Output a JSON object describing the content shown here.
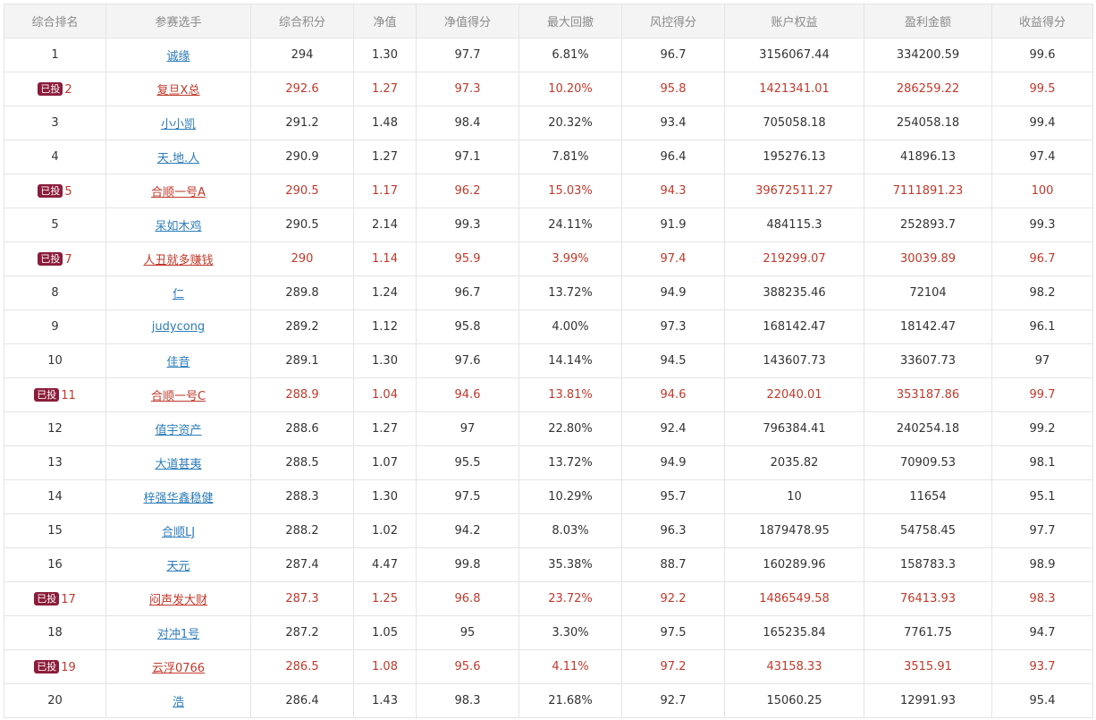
{
  "columns": [
    "综合排名",
    "参赛选手",
    "综合积分",
    "净值",
    "净值得分",
    "最大回撤",
    "风控得分",
    "账户权益",
    "盈利金额",
    "收益得分"
  ],
  "badge_label": "已投",
  "colors": {
    "invested_text": "#c0392b",
    "badge_bg": "#8b1d3a",
    "link": "#2d7cb8"
  },
  "rows": [
    {
      "rank": "1",
      "name": "诚缘",
      "score": "294",
      "nav": "1.30",
      "nav_score": "97.7",
      "drawdown": "6.81%",
      "risk_score": "96.7",
      "equity": "3156067.44",
      "profit": "334200.59",
      "return_score": "99.6",
      "invested": false
    },
    {
      "rank": "2",
      "name": "复旦X总",
      "score": "292.6",
      "nav": "1.27",
      "nav_score": "97.3",
      "drawdown": "10.20%",
      "risk_score": "95.8",
      "equity": "1421341.01",
      "profit": "286259.22",
      "return_score": "99.5",
      "invested": true
    },
    {
      "rank": "3",
      "name": "小小凯",
      "score": "291.2",
      "nav": "1.48",
      "nav_score": "98.4",
      "drawdown": "20.32%",
      "risk_score": "93.4",
      "equity": "705058.18",
      "profit": "254058.18",
      "return_score": "99.4",
      "invested": false
    },
    {
      "rank": "4",
      "name": "天.地.人",
      "score": "290.9",
      "nav": "1.27",
      "nav_score": "97.1",
      "drawdown": "7.81%",
      "risk_score": "96.4",
      "equity": "195276.13",
      "profit": "41896.13",
      "return_score": "97.4",
      "invested": false
    },
    {
      "rank": "5",
      "name": "合顺一号A",
      "score": "290.5",
      "nav": "1.17",
      "nav_score": "96.2",
      "drawdown": "15.03%",
      "risk_score": "94.3",
      "equity": "39672511.27",
      "profit": "7111891.23",
      "return_score": "100",
      "invested": true
    },
    {
      "rank": "5",
      "name": "呆如木鸡",
      "score": "290.5",
      "nav": "2.14",
      "nav_score": "99.3",
      "drawdown": "24.11%",
      "risk_score": "91.9",
      "equity": "484115.3",
      "profit": "252893.7",
      "return_score": "99.3",
      "invested": false
    },
    {
      "rank": "7",
      "name": "人丑就多赚钱",
      "score": "290",
      "nav": "1.14",
      "nav_score": "95.9",
      "drawdown": "3.99%",
      "risk_score": "97.4",
      "equity": "219299.07",
      "profit": "30039.89",
      "return_score": "96.7",
      "invested": true
    },
    {
      "rank": "8",
      "name": "仁",
      "score": "289.8",
      "nav": "1.24",
      "nav_score": "96.7",
      "drawdown": "13.72%",
      "risk_score": "94.9",
      "equity": "388235.46",
      "profit": "72104",
      "return_score": "98.2",
      "invested": false
    },
    {
      "rank": "9",
      "name": "judycong",
      "score": "289.2",
      "nav": "1.12",
      "nav_score": "95.8",
      "drawdown": "4.00%",
      "risk_score": "97.3",
      "equity": "168142.47",
      "profit": "18142.47",
      "return_score": "96.1",
      "invested": false
    },
    {
      "rank": "10",
      "name": "佳音",
      "score": "289.1",
      "nav": "1.30",
      "nav_score": "97.6",
      "drawdown": "14.14%",
      "risk_score": "94.5",
      "equity": "143607.73",
      "profit": "33607.73",
      "return_score": "97",
      "invested": false
    },
    {
      "rank": "11",
      "name": "合顺一号C",
      "score": "288.9",
      "nav": "1.04",
      "nav_score": "94.6",
      "drawdown": "13.81%",
      "risk_score": "94.6",
      "equity": "22040.01",
      "profit": "353187.86",
      "return_score": "99.7",
      "invested": true
    },
    {
      "rank": "12",
      "name": "值宇资产",
      "score": "288.6",
      "nav": "1.27",
      "nav_score": "97",
      "drawdown": "22.80%",
      "risk_score": "92.4",
      "equity": "796384.41",
      "profit": "240254.18",
      "return_score": "99.2",
      "invested": false
    },
    {
      "rank": "13",
      "name": "大道甚夷",
      "score": "288.5",
      "nav": "1.07",
      "nav_score": "95.5",
      "drawdown": "13.72%",
      "risk_score": "94.9",
      "equity": "2035.82",
      "profit": "70909.53",
      "return_score": "98.1",
      "invested": false
    },
    {
      "rank": "14",
      "name": "梓强华鑫稳健",
      "score": "288.3",
      "nav": "1.30",
      "nav_score": "97.5",
      "drawdown": "10.29%",
      "risk_score": "95.7",
      "equity": "10",
      "profit": "11654",
      "return_score": "95.1",
      "invested": false
    },
    {
      "rank": "15",
      "name": "合顺LJ",
      "score": "288.2",
      "nav": "1.02",
      "nav_score": "94.2",
      "drawdown": "8.03%",
      "risk_score": "96.3",
      "equity": "1879478.95",
      "profit": "54758.45",
      "return_score": "97.7",
      "invested": false
    },
    {
      "rank": "16",
      "name": "天元",
      "score": "287.4",
      "nav": "4.47",
      "nav_score": "99.8",
      "drawdown": "35.38%",
      "risk_score": "88.7",
      "equity": "160289.96",
      "profit": "158783.3",
      "return_score": "98.9",
      "invested": false
    },
    {
      "rank": "17",
      "name": "闷声发大财",
      "score": "287.3",
      "nav": "1.25",
      "nav_score": "96.8",
      "drawdown": "23.72%",
      "risk_score": "92.2",
      "equity": "1486549.58",
      "profit": "76413.93",
      "return_score": "98.3",
      "invested": true
    },
    {
      "rank": "18",
      "name": "对冲1号",
      "score": "287.2",
      "nav": "1.05",
      "nav_score": "95",
      "drawdown": "3.30%",
      "risk_score": "97.5",
      "equity": "165235.84",
      "profit": "7761.75",
      "return_score": "94.7",
      "invested": false
    },
    {
      "rank": "19",
      "name": "云浮0766",
      "score": "286.5",
      "nav": "1.08",
      "nav_score": "95.6",
      "drawdown": "4.11%",
      "risk_score": "97.2",
      "equity": "43158.33",
      "profit": "3515.91",
      "return_score": "93.7",
      "invested": true
    },
    {
      "rank": "20",
      "name": "浩",
      "score": "286.4",
      "nav": "1.43",
      "nav_score": "98.3",
      "drawdown": "21.68%",
      "risk_score": "92.7",
      "equity": "15060.25",
      "profit": "12991.93",
      "return_score": "95.4",
      "invested": false
    }
  ]
}
